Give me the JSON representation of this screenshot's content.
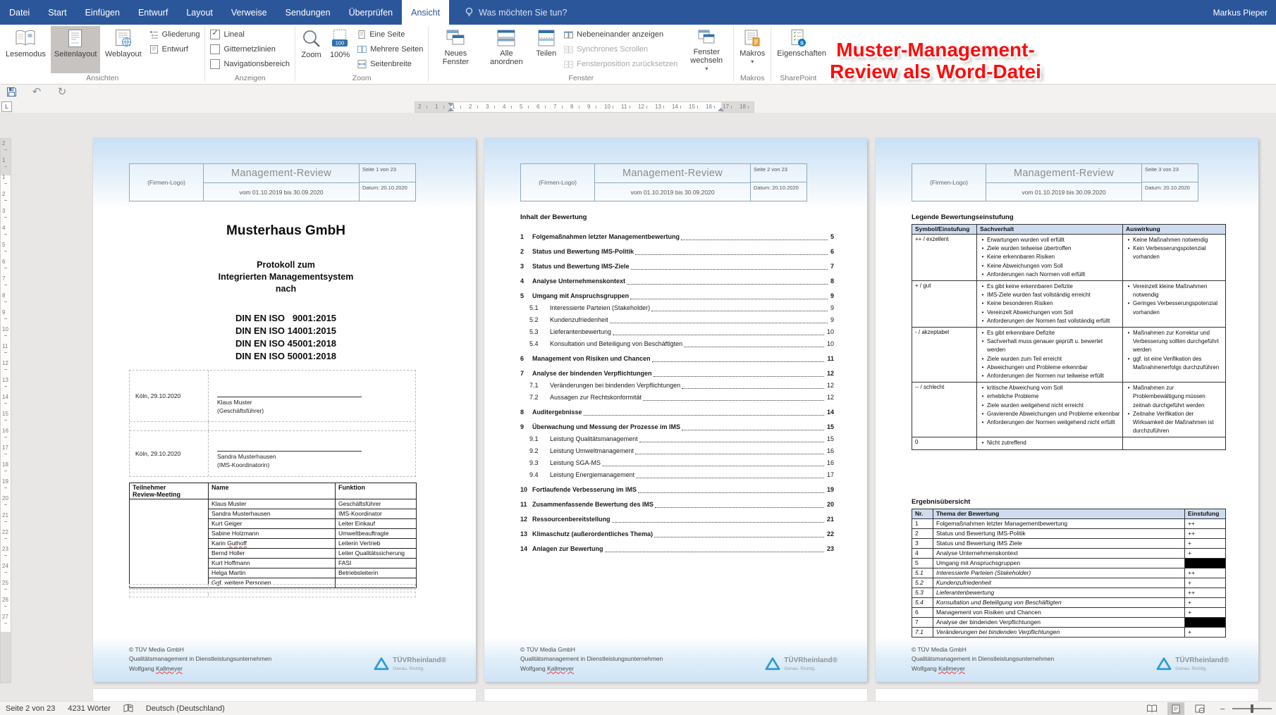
{
  "colors": {
    "titlebar": "#2b579a",
    "annotation_red": "#ff0b0b",
    "band_blue": "#c9e0f5",
    "table_header_blue": "#cfdcef"
  },
  "titlebar": {
    "tabs": [
      {
        "label": "Datei"
      },
      {
        "label": "Start"
      },
      {
        "label": "Einfügen"
      },
      {
        "label": "Entwurf"
      },
      {
        "label": "Layout"
      },
      {
        "label": "Verweise"
      },
      {
        "label": "Sendungen"
      },
      {
        "label": "Überprüfen"
      },
      {
        "label": "Ansicht"
      }
    ],
    "active_tab": "Ansicht",
    "search_placeholder": "Was möchten Sie tun?",
    "user": "Markus Pieper"
  },
  "ribbon": {
    "ansichten": {
      "group_label": "Ansichten",
      "lesemodus": "Lesemodus",
      "seitenlayout": "Seitenlayout",
      "weblayout": "Weblayout",
      "gliederung": "Gliederung",
      "entwurf": "Entwurf"
    },
    "anzeigen": {
      "group_label": "Anzeigen",
      "lineal": "Lineal",
      "lineal_checked": true,
      "gitternetzlinien": "Gitternetzlinien",
      "navigationsbereich": "Navigationsbereich"
    },
    "zoom": {
      "group_label": "Zoom",
      "zoom": "Zoom",
      "percent": "100%",
      "eine_seite": "Eine Seite",
      "mehrere_seiten": "Mehrere Seiten",
      "seitenbreite": "Seitenbreite"
    },
    "fenster": {
      "group_label": "Fenster",
      "neues_fenster": "Neues Fenster",
      "alle_anordnen": "Alle anordnen",
      "teilen": "Teilen",
      "nebeneinander": "Nebeneinander anzeigen",
      "synchrones": "Synchrones Scrollen",
      "fensterposition": "Fensterposition zurücksetzen",
      "fenster_wechseln": "Fenster wechseln"
    },
    "makros": {
      "group_label": "Makros",
      "makros": "Makros"
    },
    "sharepoint": {
      "group_label": "SharePoint",
      "eigenschaften": "Eigenschaften"
    }
  },
  "annotation": {
    "line1": "Muster-Management-",
    "line2": "Review als Word-Datei",
    "color": "#ff0b0b"
  },
  "rulers": {
    "horizontal": [
      "2",
      "1",
      "1",
      "2",
      "3",
      "4",
      "5",
      "6",
      "7",
      "8",
      "9",
      "10",
      "11",
      "12",
      "13",
      "14",
      "15",
      "16",
      "17",
      "18"
    ],
    "vertical": [
      "2",
      "1",
      "1",
      "2",
      "3",
      "4",
      "5",
      "6",
      "7",
      "8",
      "9",
      "10",
      "11",
      "12",
      "13",
      "14",
      "15",
      "16",
      "17",
      "18",
      "19",
      "20",
      "21",
      "22",
      "23",
      "24",
      "25",
      "26",
      "27"
    ]
  },
  "document": {
    "header": {
      "logo": "(Firmen-Logo)",
      "title": "Management-Review",
      "period": "vom 01.10.2019 bis 30.09.2020",
      "date": "Datum: 20.10.2020"
    },
    "pages": [
      {
        "page_label": "Seite 1 von 23"
      },
      {
        "page_label": "Seite 2 von 23"
      },
      {
        "page_label": "Seite 3 von 23"
      }
    ],
    "footer": {
      "line1": "© TÜV Media GmbH",
      "line2": "Qualitätsmanagement in Dienstleistungsunternehmen",
      "author_first": "Wolfgang",
      "author_last": "Kallmeyer",
      "logo_brand": "TÜVRheinland®",
      "logo_tagline": "Genau. Richtig."
    },
    "page1": {
      "company": "Musterhaus GmbH",
      "subtitle": [
        "Protokoll zum",
        "Integrierten Managementsystem",
        "nach"
      ],
      "norms": [
        "DIN EN ISO   9001:2015",
        "DIN EN ISO 14001:2015",
        "DIN EN ISO 45001:2018",
        "DIN EN ISO 50001:2018"
      ],
      "signatures": [
        {
          "place": "Köln, 29.10.2020",
          "name": "Klaus Muster",
          "role": "(Geschäftsführer)"
        },
        {
          "place": "Köln, 29.10.2020",
          "name": "Sandra Musterhausen",
          "role": "(IMS-Koordinatorin)"
        }
      ],
      "participants": {
        "header_col1a": "Teilnehmer",
        "header_col1b": "Review-Meeting",
        "header_name": "Name",
        "header_funktion": "Funktion",
        "rows": [
          {
            "name": "Klaus Muster",
            "funktion": "Geschäftsführer"
          },
          {
            "name": "Sandra Musterhausen",
            "funktion": "IMS-Koordinator"
          },
          {
            "name": "Kurt Geiger",
            "funktion": "Leiter Einkauf"
          },
          {
            "name": "Sabine Holzmann",
            "funktion": "Umweltbeauftragte"
          },
          {
            "name": "Karin Guthoff",
            "funktion": "Leiterin Vertrieb",
            "misspelled": true
          },
          {
            "name": "Bernd Holler",
            "funktion": "Leiter Qualitätssicherung"
          },
          {
            "name": "Kurt Hoffmann",
            "funktion": "FASI"
          },
          {
            "name": "Helga Martin",
            "funktion": "Betriebsleiterin"
          },
          {
            "name": "Ggf. weitere Personen",
            "funktion": ""
          }
        ]
      }
    },
    "page2": {
      "heading": "Inhalt der Bewertung",
      "toc": [
        {
          "num": "1",
          "label": "Folgemaßnahmen letzter Managementbewertung",
          "page": "5",
          "sub": false
        },
        {
          "num": "2",
          "label": "Status und Bewertung IMS-Politik",
          "page": "6",
          "sub": false
        },
        {
          "num": "3",
          "label": "Status und Bewertung IMS-Ziele",
          "page": "7",
          "sub": false
        },
        {
          "num": "4",
          "label": "Analyse Unternehmenskontext",
          "page": "8",
          "sub": false
        },
        {
          "num": "5",
          "label": "Umgang mit Anspruchsgruppen",
          "page": "9",
          "sub": false
        },
        {
          "num": "5.1",
          "label": "Interessierte Parteien (Stakeholder)",
          "page": "9",
          "sub": true
        },
        {
          "num": "5.2",
          "label": "Kundenzufriedenheit",
          "page": "9",
          "sub": true
        },
        {
          "num": "5.3",
          "label": "Lieferantenbewertung",
          "page": "10",
          "sub": true
        },
        {
          "num": "5.4",
          "label": "Konsultation und Beteiligung von Beschäftigten",
          "page": "10",
          "sub": true
        },
        {
          "num": "6",
          "label": "Management von Risiken und Chancen",
          "page": "11",
          "sub": false
        },
        {
          "num": "7",
          "label": "Analyse der bindenden Verpflichtungen",
          "page": "12",
          "sub": false
        },
        {
          "num": "7.1",
          "label": "Veränderungen bei bindenden Verpflichtungen",
          "page": "12",
          "sub": true
        },
        {
          "num": "7.2",
          "label": "Aussagen zur Rechtskonformität",
          "page": "12",
          "sub": true
        },
        {
          "num": "8",
          "label": "Auditergebnisse",
          "page": "14",
          "sub": false
        },
        {
          "num": "9",
          "label": "Überwachung und Messung der Prozesse im IMS",
          "page": "15",
          "sub": false
        },
        {
          "num": "9.1",
          "label": "Leistung Qualitätsmanagement",
          "page": "15",
          "sub": true
        },
        {
          "num": "9.2",
          "label": "Leistung Umweltmanagement",
          "page": "16",
          "sub": true
        },
        {
          "num": "9.3",
          "label": "Leistung SGA-MS",
          "page": "16",
          "sub": true
        },
        {
          "num": "9.4",
          "label": "Leistung Energiemanagement",
          "page": "17",
          "sub": true
        },
        {
          "num": "10",
          "label": "Fortlaufende Verbesserung im IMS",
          "page": "19",
          "sub": false
        },
        {
          "num": "11",
          "label": "Zusammenfassende Bewertung des IMS",
          "page": "20",
          "sub": false
        },
        {
          "num": "12",
          "label": "Ressourcenbereitstellung",
          "page": "21",
          "sub": false
        },
        {
          "num": "13",
          "label": "Klimaschutz (außerordentliches Thema)",
          "page": "22",
          "sub": false
        },
        {
          "num": "14",
          "label": "Anlagen zur Bewertung",
          "page": "23",
          "sub": false
        }
      ]
    },
    "page3": {
      "legend_heading": "Legende Bewertungseinstufung",
      "legend": {
        "headers": [
          "Symbol/Einstufung",
          "Sachverhalt",
          "Auswirkung"
        ],
        "rows": [
          {
            "symbol": "++ / exzellent",
            "facts": [
              "Erwartungen wurden voll erfüllt",
              "Ziele wurden teilweise übertroffen",
              "Keine erkennbaren Risiken",
              "Keine Abweichungen vom Soll",
              "Anforderungen nach Normen voll erfüllt"
            ],
            "effects": [
              "Keine Maßnahmen notwendig",
              "Kein Verbesserungspotenzial vorhanden"
            ]
          },
          {
            "symbol": "+ / gut",
            "facts": [
              "Es gibt keine erkennbaren Defizite",
              "IMS-Ziele wurden fast vollständig erreicht",
              "Keine besonderen Risiken",
              "Vereinzelt Abweichungen vom Soll",
              "Anforderungen der Normen fast vollständig erfüllt"
            ],
            "effects": [
              "Vereinzelt kleine Maßnahmen notwendig",
              "Geringes Verbesserungspotenzial vorhanden"
            ]
          },
          {
            "symbol": "- / akzeptabel",
            "facts": [
              "Es gibt erkennbare Defizite",
              "Sachverhalt muss genauer geprüft u. bewertet werden",
              "Ziele wurden zum Teil erreicht",
              "Abweichungen und Probleme erkennbar",
              "Anforderungen der Normen nur teilweise erfüllt"
            ],
            "effects": [
              "Maßnahmen zur Korrektur und Verbesserung sollten durchgeführt werden",
              "ggf. ist eine Verifikation des Maßnahmenerfolgs durchzuführen"
            ]
          },
          {
            "symbol": "-- / schlecht",
            "facts": [
              "kritische Abweichung vom Soll",
              "erhebliche Probleme",
              "Ziele wurden weitgehend nicht erreicht",
              "Gravierende Abweichungen und Probleme erkennbar",
              "Anforderungen der Normen weitgehend nicht erfüllt"
            ],
            "effects": [
              "Maßnahmen zur Problembewältigung müssen zeitnah durchgeführt werden",
              "Zeitnahe Verifikation der Wirksamkeit der Maßnahmen ist durchzuführen"
            ]
          },
          {
            "symbol": "0",
            "facts": [
              "Nicht zutreffend"
            ],
            "effects": []
          }
        ]
      },
      "results_heading": "Ergebnisübersicht",
      "results": {
        "headers": [
          "Nr.",
          "Thema der Bewertung",
          "Einstufung"
        ],
        "rows": [
          {
            "nr": "1",
            "topic": "Folgemaßnahmen letzter Managementbewertung",
            "rating": "++",
            "italic": false,
            "black": false
          },
          {
            "nr": "2",
            "topic": "Status und Bewertung IMS-Politik",
            "rating": "++",
            "italic": false,
            "black": false
          },
          {
            "nr": "3",
            "topic": "Status und Bewertung IMS Ziele",
            "rating": "+",
            "italic": false,
            "black": false
          },
          {
            "nr": "4",
            "topic": "Analyse Unternehmenskontext",
            "rating": "+",
            "italic": false,
            "black": false
          },
          {
            "nr": "5",
            "topic": "Umgang mit Anspruchsgruppen",
            "rating": "",
            "italic": false,
            "black": true
          },
          {
            "nr": "5.1",
            "topic": "Interessierte Parteien (Stakeholder)",
            "rating": "++",
            "italic": true,
            "black": false
          },
          {
            "nr": "5.2",
            "topic": "Kundenzufriedenheit",
            "rating": "+",
            "italic": true,
            "black": false
          },
          {
            "nr": "5.3",
            "topic": "Lieferantenbewertung",
            "rating": "++",
            "italic": true,
            "black": false
          },
          {
            "nr": "5.4",
            "topic": "Konsultation und Beteiligung von Beschäftigten",
            "rating": "+",
            "italic": true,
            "black": false
          },
          {
            "nr": "6",
            "topic": "Management von Risiken und Chancen",
            "rating": "+",
            "italic": false,
            "black": false
          },
          {
            "nr": "7",
            "topic": "Analyse der bindenden Verpflichtungen",
            "rating": "",
            "italic": false,
            "black": true
          },
          {
            "nr": "7.1",
            "topic": "Veränderungen bei bindenden Verpflichtungen",
            "rating": "+",
            "italic": true,
            "black": false
          }
        ]
      }
    }
  },
  "statusbar": {
    "page": "Seite 2 von 23",
    "words": "4231 Wörter",
    "language": "Deutsch (Deutschland)"
  }
}
